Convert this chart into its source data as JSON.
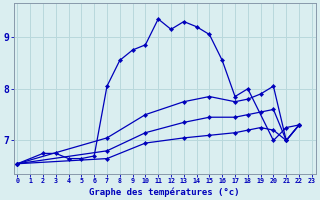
{
  "xlabel": "Graphe des températures (°c)",
  "background_color": "#daeef0",
  "grid_color": "#b8d8dc",
  "line_color": "#0000bb",
  "series": [
    {
      "x": [
        0,
        2,
        3,
        4,
        5,
        6,
        7,
        8,
        9,
        10,
        11,
        12,
        13,
        14,
        15,
        16,
        17,
        18,
        20,
        21,
        22
      ],
      "y": [
        6.55,
        6.75,
        6.75,
        6.65,
        6.65,
        6.7,
        8.05,
        8.55,
        8.75,
        8.85,
        9.35,
        9.15,
        9.3,
        9.2,
        9.05,
        8.55,
        7.85,
        8.0,
        7.0,
        7.25,
        7.3
      ]
    },
    {
      "x": [
        0,
        7,
        10,
        13,
        15,
        17,
        18,
        19,
        20,
        21,
        22
      ],
      "y": [
        6.55,
        7.05,
        7.5,
        7.75,
        7.85,
        7.75,
        7.8,
        7.9,
        8.05,
        7.0,
        7.3
      ]
    },
    {
      "x": [
        0,
        7,
        10,
        13,
        15,
        17,
        18,
        19,
        20,
        21,
        22
      ],
      "y": [
        6.55,
        6.8,
        7.15,
        7.35,
        7.45,
        7.45,
        7.5,
        7.55,
        7.6,
        7.0,
        7.3
      ]
    },
    {
      "x": [
        0,
        7,
        10,
        13,
        15,
        17,
        18,
        19,
        20,
        21,
        22
      ],
      "y": [
        6.55,
        6.65,
        6.95,
        7.05,
        7.1,
        7.15,
        7.2,
        7.25,
        7.2,
        7.0,
        7.3
      ]
    }
  ],
  "yticks": [
    7,
    8,
    9
  ],
  "xticks": [
    0,
    1,
    2,
    3,
    4,
    5,
    6,
    7,
    8,
    9,
    10,
    11,
    12,
    13,
    14,
    15,
    16,
    17,
    18,
    19,
    20,
    21,
    22,
    23
  ],
  "xtick_labels": [
    "0",
    "1",
    "2",
    "3",
    "4",
    "5",
    "6",
    "7",
    "8",
    "9",
    "10",
    "11",
    "12",
    "13",
    "14",
    "15",
    "16",
    "17",
    "18",
    "19",
    "20",
    "21",
    "22",
    "23"
  ],
  "ylim": [
    6.35,
    9.65
  ],
  "xlim": [
    -0.3,
    23.3
  ]
}
